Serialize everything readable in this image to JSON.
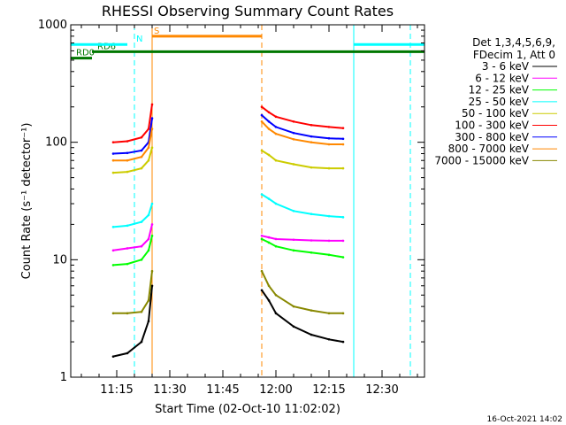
{
  "chart_data": {
    "type": "line",
    "title": "RHESSI Observing Summary Count Rates",
    "xlabel": "Start Time (02-Oct-10 11:02:02)",
    "ylabel": "Count Rate (s⁻¹ detector⁻¹)",
    "y_scale": "log",
    "ylim": [
      1,
      1000
    ],
    "y_ticks": [
      {
        "value": 1,
        "label": "1"
      },
      {
        "value": 10,
        "label": "10"
      },
      {
        "value": 100,
        "label": "100"
      },
      {
        "value": 1000,
        "label": "1000"
      }
    ],
    "xlim": [
      "11:02",
      "12:42"
    ],
    "x_ticks": [
      {
        "value": "11:15",
        "label": "11:15"
      },
      {
        "value": "11:30",
        "label": "11:30"
      },
      {
        "value": "11:45",
        "label": "11:45"
      },
      {
        "value": "12:00",
        "label": "12:00"
      },
      {
        "value": "12:15",
        "label": "12:15"
      },
      {
        "value": "12:30",
        "label": "12:30"
      }
    ],
    "legend_header": [
      "Det 1,3,4,5,6,9,",
      "FDecim 1, Att 0"
    ],
    "legend_position": "right",
    "series": [
      {
        "name": "3 - 6 keV",
        "color": "#000000",
        "segments": [
          {
            "x": [
              "11:14",
              "11:18",
              "11:22",
              "11:24",
              "11:25"
            ],
            "y": [
              1.5,
              1.6,
              2.0,
              3.0,
              6.0
            ]
          },
          {
            "x": [
              "11:56",
              "11:58",
              "12:00",
              "12:05",
              "12:10",
              "12:15",
              "12:19"
            ],
            "y": [
              5.5,
              4.5,
              3.5,
              2.7,
              2.3,
              2.1,
              2.0
            ]
          }
        ]
      },
      {
        "name": "6 - 12 keV",
        "color": "#ff00ff",
        "segments": [
          {
            "x": [
              "11:14",
              "11:18",
              "11:22",
              "11:24",
              "11:25"
            ],
            "y": [
              12,
              12.5,
              13,
              15,
              20
            ]
          },
          {
            "x": [
              "11:56",
              "11:58",
              "12:00",
              "12:05",
              "12:10",
              "12:15",
              "12:19"
            ],
            "y": [
              16,
              15.5,
              15,
              14.8,
              14.6,
              14.5,
              14.5
            ]
          }
        ]
      },
      {
        "name": "12 - 25 keV",
        "color": "#00ff00",
        "segments": [
          {
            "x": [
              "11:14",
              "11:18",
              "11:22",
              "11:24",
              "11:25"
            ],
            "y": [
              9,
              9.2,
              10,
              12,
              16
            ]
          },
          {
            "x": [
              "11:56",
              "11:58",
              "12:00",
              "12:05",
              "12:10",
              "12:15",
              "12:19"
            ],
            "y": [
              15,
              14,
              13,
              12,
              11.5,
              11,
              10.5
            ]
          }
        ]
      },
      {
        "name": "25 - 50 keV",
        "color": "#00ffff",
        "segments": [
          {
            "x": [
              "11:14",
              "11:18",
              "11:22",
              "11:24",
              "11:25"
            ],
            "y": [
              19,
              19.5,
              21,
              24,
              30
            ]
          },
          {
            "x": [
              "11:56",
              "11:58",
              "12:00",
              "12:05",
              "12:10",
              "12:15",
              "12:19"
            ],
            "y": [
              36,
              33,
              30,
              26,
              24.5,
              23.5,
              23
            ]
          }
        ]
      },
      {
        "name": "50 - 100 keV",
        "color": "#cccc00",
        "segments": [
          {
            "x": [
              "11:14",
              "11:18",
              "11:22",
              "11:24",
              "11:25"
            ],
            "y": [
              55,
              56,
              60,
              70,
              90
            ]
          },
          {
            "x": [
              "11:56",
              "11:58",
              "12:00",
              "12:05",
              "12:10",
              "12:15",
              "12:19"
            ],
            "y": [
              85,
              78,
              70,
              65,
              61,
              60,
              60
            ]
          }
        ]
      },
      {
        "name": "100 - 300 keV",
        "color": "#ff0000",
        "segments": [
          {
            "x": [
              "11:14",
              "11:18",
              "11:22",
              "11:24",
              "11:25"
            ],
            "y": [
              100,
              102,
              110,
              130,
              210
            ]
          },
          {
            "x": [
              "11:56",
              "11:58",
              "12:00",
              "12:05",
              "12:10",
              "12:15",
              "12:19"
            ],
            "y": [
              200,
              180,
              165,
              150,
              140,
              135,
              132
            ]
          }
        ]
      },
      {
        "name": "300 - 800 keV",
        "color": "#0000ff",
        "segments": [
          {
            "x": [
              "11:14",
              "11:18",
              "11:22",
              "11:24",
              "11:25"
            ],
            "y": [
              80,
              81,
              85,
              100,
              160
            ]
          },
          {
            "x": [
              "11:56",
              "11:58",
              "12:00",
              "12:05",
              "12:10",
              "12:15",
              "12:19"
            ],
            "y": [
              170,
              150,
              135,
              120,
              112,
              108,
              107
            ]
          }
        ]
      },
      {
        "name": "800 - 7000 keV",
        "color": "#ff8800",
        "segments": [
          {
            "x": [
              "11:14",
              "11:18",
              "11:22",
              "11:24",
              "11:25"
            ],
            "y": [
              70,
              70,
              75,
              90,
              130
            ]
          },
          {
            "x": [
              "11:56",
              "11:58",
              "12:00",
              "12:05",
              "12:10",
              "12:15",
              "12:19"
            ],
            "y": [
              150,
              130,
              118,
              106,
              100,
              96,
              96
            ]
          }
        ]
      },
      {
        "name": "7000 - 15000 keV",
        "color": "#888800",
        "segments": [
          {
            "x": [
              "11:14",
              "11:18",
              "11:22",
              "11:24",
              "11:25"
            ],
            "y": [
              3.5,
              3.5,
              3.6,
              4.5,
              8.0
            ]
          },
          {
            "x": [
              "11:56",
              "11:58",
              "12:00",
              "12:05",
              "12:10",
              "12:15",
              "12:19"
            ],
            "y": [
              8.0,
              6.0,
              5.0,
              4.0,
              3.7,
              3.5,
              3.5
            ]
          }
        ]
      }
    ],
    "flags": [
      {
        "label": "RD0",
        "color": "#007700",
        "x_start": "11:02",
        "x_end": "11:08",
        "level": 520,
        "label_x": "11:03"
      },
      {
        "label": "RD6",
        "color": "#007700",
        "x_start": "11:08",
        "x_end": "12:42",
        "level": 590,
        "label_x": "11:09"
      },
      {
        "label": "S",
        "color": "#ff8800",
        "x_start": "11:25",
        "x_end": "11:56",
        "level": 800,
        "label_x": "11:25"
      },
      {
        "label": "N",
        "color": "#00ffff",
        "x_start": "11:02",
        "x_end": "11:18",
        "level": 680,
        "label_x": "11:20"
      },
      {
        "label": "",
        "color": "#00ffff",
        "x_start": "12:22",
        "x_end": "12:42",
        "level": 680
      }
    ],
    "markers": [
      {
        "x": "11:02",
        "color": "#00ffff",
        "style": "solid"
      },
      {
        "x": "11:20",
        "color": "#00ffff",
        "style": "dashed"
      },
      {
        "x": "11:25",
        "color": "#ff8800",
        "style": "solid"
      },
      {
        "x": "11:56",
        "color": "#ff8800",
        "style": "dashed"
      },
      {
        "x": "12:22",
        "color": "#00ffff",
        "style": "solid"
      },
      {
        "x": "12:38",
        "color": "#00ffff",
        "style": "dashed"
      }
    ],
    "footer": "16-Oct-2021 14:02"
  }
}
